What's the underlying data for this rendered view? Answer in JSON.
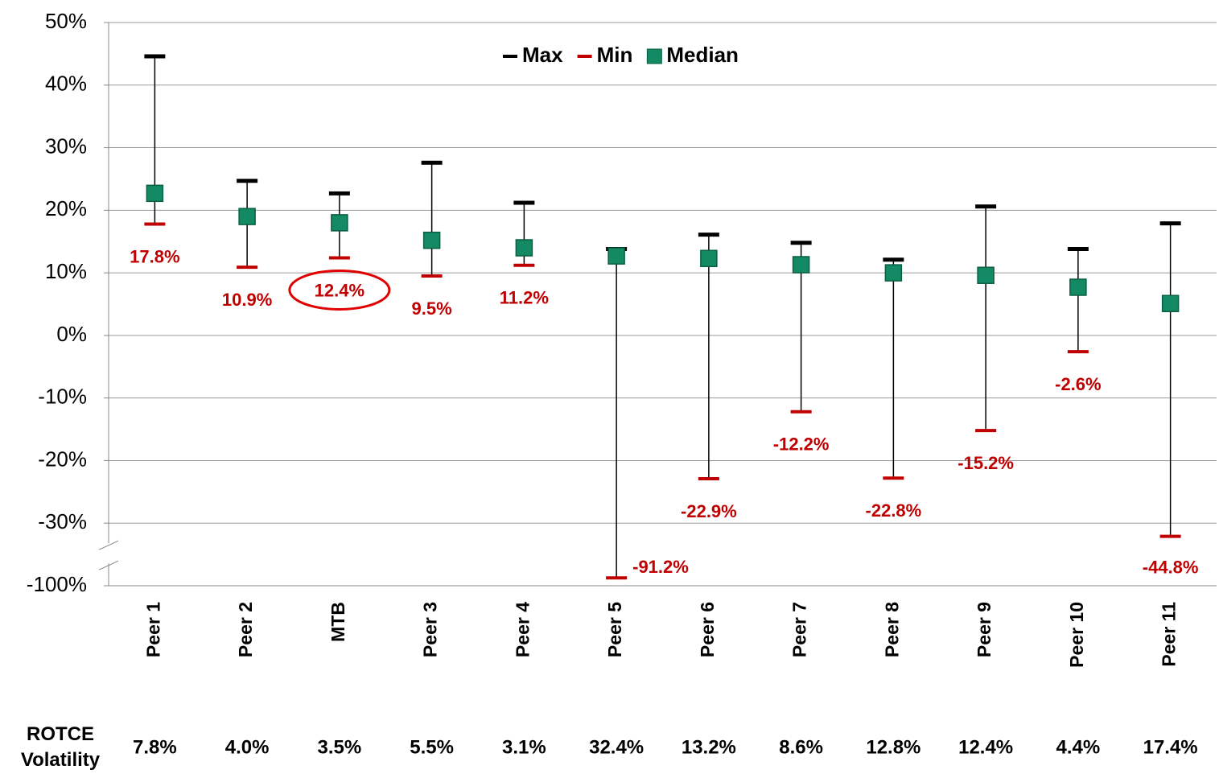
{
  "chart_data": {
    "type": "range",
    "categories": [
      "Peer 1",
      "Peer 2",
      "MTB",
      "Peer 3",
      "Peer 4",
      "Peer 5",
      "Peer 6",
      "Peer 7",
      "Peer 8",
      "Peer 9",
      "Peer 10",
      "Peer 11"
    ],
    "series": [
      {
        "name": "Max",
        "color": "#000000",
        "values": [
          44.6,
          24.7,
          22.7,
          27.6,
          21.2,
          13.8,
          16.1,
          14.8,
          12.1,
          20.6,
          13.8,
          17.9
        ]
      },
      {
        "name": "Min",
        "color": "#c00000",
        "values": [
          17.8,
          10.9,
          12.4,
          9.5,
          11.2,
          -91.2,
          -22.9,
          -12.2,
          -22.8,
          -15.2,
          -2.6,
          -44.8
        ],
        "value_labels": [
          "17.8%",
          "10.9%",
          "12.4%",
          "9.5%",
          "11.2%",
          "-91.2%",
          "-22.9%",
          "-12.2%",
          "-22.8%",
          "-15.2%",
          "-2.6%",
          "-44.8%"
        ]
      },
      {
        "name": "Median",
        "color": "#138a63",
        "values": [
          22.7,
          19.0,
          18.0,
          15.2,
          14.0,
          12.7,
          12.3,
          11.3,
          10.0,
          9.6,
          7.7,
          5.1
        ]
      }
    ],
    "ylim": [
      -100,
      50
    ],
    "yticks": [
      {
        "value": -100,
        "label": "-100%"
      },
      {
        "value": -30,
        "label": "-30%"
      },
      {
        "value": -20,
        "label": "-20%"
      },
      {
        "value": -10,
        "label": "-10%"
      },
      {
        "value": 0,
        "label": "0%"
      },
      {
        "value": 10,
        "label": "10%"
      },
      {
        "value": 20,
        "label": "20%"
      },
      {
        "value": 30,
        "label": "30%"
      },
      {
        "value": 40,
        "label": "40%"
      },
      {
        "value": 50,
        "label": "50%"
      }
    ],
    "axis_break": true,
    "grid": true,
    "legend": "top",
    "highlight": "MTB",
    "volatility": {
      "label": "ROTCE Volatility",
      "values": [
        7.8,
        4.0,
        3.5,
        5.5,
        3.1,
        32.4,
        13.2,
        8.6,
        12.8,
        12.4,
        4.4,
        17.4
      ],
      "value_labels": [
        "7.8%",
        "4.0%",
        "3.5%",
        "5.5%",
        "3.1%",
        "32.4%",
        "13.2%",
        "8.6%",
        "12.8%",
        "12.4%",
        "4.4%",
        "17.4%"
      ]
    }
  }
}
